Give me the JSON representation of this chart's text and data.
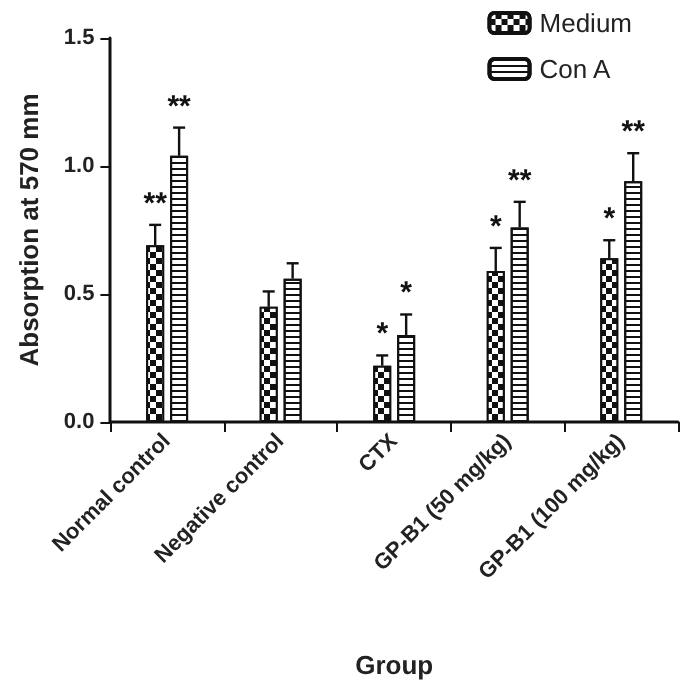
{
  "chart_data": {
    "type": "bar",
    "xlabel": "Group",
    "ylabel": "Absorption at 570 mm",
    "categories": [
      "Normal control",
      "Negative control",
      "CTX",
      "GP-B1 (50 mg/kg)",
      "GP-B1 (100 mg/kg)"
    ],
    "series": [
      {
        "name": "Medium",
        "color": "#111111",
        "values": [
          0.69,
          0.45,
          0.22,
          0.59,
          0.64
        ],
        "errors": [
          [
            0.69,
            0.77
          ],
          [
            0.45,
            0.51
          ],
          [
            0.22,
            0.26
          ],
          [
            0.59,
            0.68
          ],
          [
            0.64,
            0.71
          ]
        ]
      },
      {
        "name": "Con A",
        "color": "#ffffff",
        "values": [
          1.04,
          0.56,
          0.34,
          0.76,
          0.94
        ],
        "errors": [
          [
            1.04,
            1.15
          ],
          [
            0.56,
            0.62
          ],
          [
            0.34,
            0.42
          ],
          [
            0.76,
            0.86
          ],
          [
            0.94,
            1.05
          ]
        ]
      }
    ],
    "ylim": [
      0,
      1.5
    ],
    "yticks": [
      {
        "value": 0,
        "label": "0.0"
      },
      {
        "value": 0.5,
        "label": "0.5"
      },
      {
        "value": 1,
        "label": "1.0"
      },
      {
        "value": 1.5,
        "label": "1.5"
      }
    ],
    "grid": false,
    "legend": "top right",
    "annotations": [
      {
        "text": "**",
        "x": "Normal control",
        "y": 0.77
      },
      {
        "text": "**",
        "x": "Normal control",
        "y": 1.15
      },
      {
        "text": "*",
        "x": "CTX",
        "y": 0.26
      },
      {
        "text": "*",
        "x": "CTX",
        "y": 0.42
      },
      {
        "text": "*",
        "x": "GP-B1 (50 mg/kg)",
        "y": 0.68
      },
      {
        "text": "**",
        "x": "GP-B1 (50 mg/kg)",
        "y": 0.86
      },
      {
        "text": "*",
        "x": "GP-B1 (100 mg/kg)",
        "y": 0.71
      },
      {
        "text": "**",
        "x": "GP-B1 (100 mg/kg)",
        "y": 1.05
      }
    ]
  }
}
